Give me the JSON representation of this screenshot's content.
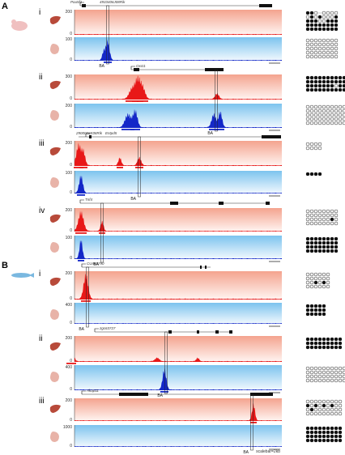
{
  "panels": [
    {
      "letter": "A",
      "subpanels": [
        {
          "roman": "i",
          "genes": [
            "Pou5f1",
            "4933406J08Rik"
          ],
          "ymax": [
            "200",
            "100"
          ],
          "ba": "BA"
        },
        {
          "roman": "ii",
          "genes": [
            "Oxct1"
          ],
          "ymax": [
            "300",
            "200"
          ],
          "ba": "BA"
        },
        {
          "roman": "iii",
          "genes": [
            "2900006K08Rik",
            "Entpd5"
          ],
          "ymax": [
            "200",
            "100"
          ],
          "ba": "BA"
        },
        {
          "roman": "iv",
          "genes": [
            "Tnf4"
          ],
          "ymax": [
            "200",
            "100"
          ],
          "ba": "BA"
        }
      ]
    },
    {
      "letter": "B",
      "subpanels": [
        {
          "roman": "i",
          "genes": [
            "CU463790"
          ],
          "ymax": [
            "200",
            "400"
          ],
          "ba": "BA"
        },
        {
          "roman": "ii",
          "genes": [
            "zgc63727"
          ],
          "ymax": [
            "200",
            "400"
          ],
          "ba": "BA"
        },
        {
          "roman": "iii",
          "genes": [
            "Akap11"
          ],
          "ymax": [
            "200",
            "1000"
          ],
          "ba": "BA"
        }
      ]
    }
  ],
  "ymin": "0",
  "scalebar": "scalebar=2kb",
  "colors": {
    "liver_signal": "#e81818",
    "liver_bg": "#f7b9a8",
    "liver_organ": "#b84a3a",
    "pancreas_signal": "#1428c8",
    "pancreas_bg": "#a8d4f0",
    "pancreas_organ": "#e8b3a8",
    "mouse": "#f0c0c0",
    "zebrafish": "#7ab8e0"
  },
  "methylation_grids": [
    {
      "rows": [
        "xxo.oooo",
        "oxoxooox",
        "xxxooxxx",
        "xxxxxxxx",
        "xxxxxxxx"
      ]
    },
    {
      "rows": [
        "oooooooo",
        "oooooooo",
        "oooooooo",
        "oooooooo",
        "oooooooo"
      ]
    },
    {
      "rows": [
        "xxxxxxxxxxx",
        "xxxxxxxxxxx",
        "xxxxxxxoxxx",
        "xxxxxxxxxxx"
      ]
    },
    {
      "rows": [
        "ooooooooooo",
        "ooooooooooo",
        "ooooooooooo",
        "ooooooooooo",
        "ooooooooooo"
      ]
    },
    {
      "rows": [
        "oooo",
        "oooo"
      ]
    },
    {
      "rows": [
        "xxxx"
      ]
    },
    {
      "rows": [
        "oooooooo",
        "oooooooo",
        "ooooooxo",
        "oooooooo"
      ]
    },
    {
      "rows": [
        "xxxxxxxx",
        "xxxxxxxx",
        "xxxxxxxx",
        "xxxxxxxx"
      ]
    },
    {
      "rows": [
        "oooooo",
        "oooooo",
        "ooxoxo",
        "oooooo"
      ]
    },
    {
      "rows": [
        "xxxxx",
        "xxxxx",
        "xxxxx"
      ]
    },
    {
      "rows": [
        "xxxxxxxxx",
        "xxxxxxxxx",
        "xxxxxxxxx"
      ]
    },
    {
      "rows": [
        "oooooooooo",
        "oooooooooo",
        "oooooooooo",
        "oooooooooo"
      ]
    },
    {
      "rows": [
        "ooooooooo",
        "xoxoxoxoo",
        "oxooooooo",
        "ooooooooo"
      ]
    },
    {
      "rows": [
        "xxxxxxxxx",
        "xxxxxxxxx",
        "xxxxxxxxx",
        "xxxxxxxxx"
      ]
    }
  ]
}
